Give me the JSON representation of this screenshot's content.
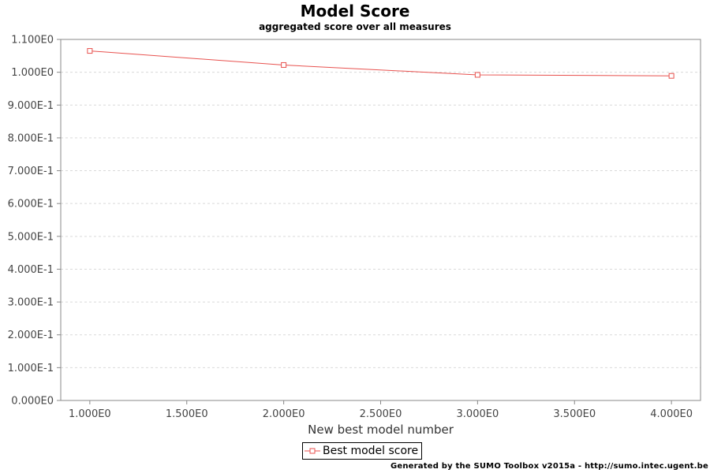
{
  "header": {
    "title": "Model Score",
    "subtitle": "aggregated score over all measures"
  },
  "footer": {
    "credit": "Generated by the SUMO Toolbox v2015a - http://sumo.intec.ugent.be"
  },
  "colors": {
    "series": "#e8524f",
    "grid": "#d9d9d9",
    "frame": "#888888"
  },
  "chart_data": {
    "type": "line",
    "title": "Model Score",
    "subtitle": "aggregated score over all measures",
    "xlabel": "New best model number",
    "ylabel": "",
    "xlim": [
      0.85,
      4.15
    ],
    "ylim": [
      0.0,
      1.1
    ],
    "grid": true,
    "legend_position": "bottom",
    "x_ticks": [
      1.0,
      1.5,
      2.0,
      2.5,
      3.0,
      3.5,
      4.0
    ],
    "x_tick_labels": [
      "1.000E0",
      "1.500E0",
      "2.000E0",
      "2.500E0",
      "3.000E0",
      "3.500E0",
      "4.000E0"
    ],
    "y_ticks": [
      0.0,
      0.1,
      0.2,
      0.3,
      0.4,
      0.5,
      0.6,
      0.7,
      0.8,
      0.9,
      1.0,
      1.1
    ],
    "y_tick_labels": [
      "0.000E0",
      "1.000E-1",
      "2.000E-1",
      "3.000E-1",
      "4.000E-1",
      "5.000E-1",
      "6.000E-1",
      "7.000E-1",
      "8.000E-1",
      "9.000E-1",
      "1.000E0",
      "1.100E0"
    ],
    "series": [
      {
        "name": "Best model score",
        "marker": "square",
        "x": [
          1,
          2,
          3,
          4
        ],
        "values": [
          1.065,
          1.022,
          0.992,
          0.989
        ]
      }
    ]
  }
}
